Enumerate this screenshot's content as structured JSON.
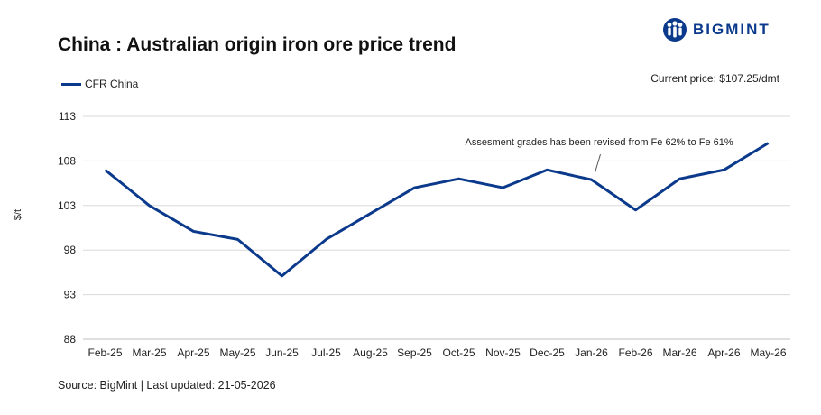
{
  "logo": {
    "text": "BIGMINT",
    "icon": "people-globe-icon",
    "color": "#0b3a8c"
  },
  "current_price": "Current price: $107.25/dmt",
  "footer": "Source: BigMint | Last updated: 21-05-2026",
  "colors": {
    "line": "#0b3a8c",
    "grid": "#d9d9d9",
    "axis": "#bfbfbf"
  },
  "chart_data": {
    "type": "line",
    "title": "China : Australian origin iron ore price trend",
    "ylabel": "$/t",
    "xlabel": "",
    "ylim": [
      88,
      113
    ],
    "yticks": [
      88,
      93,
      98,
      103,
      108,
      113
    ],
    "grid": true,
    "legend_position": "top-left",
    "categories": [
      "Feb-25",
      "Mar-25",
      "Apr-25",
      "May-25",
      "Jun-25",
      "Jul-25",
      "Aug-25",
      "Sep-25",
      "Oct-25",
      "Nov-25",
      "Dec-25",
      "Jan-26",
      "Feb-26",
      "Mar-26",
      "Apr-26",
      "May-26"
    ],
    "series": [
      {
        "name": "CFR China",
        "values": [
          107,
          103,
          100.1,
          99.2,
          95.1,
          99.2,
          102.1,
          105,
          106,
          105,
          107,
          105.9,
          102.5,
          106,
          107,
          110
        ]
      }
    ],
    "annotations": [
      {
        "text": "Assesment grades has been revised from Fe 62% to Fe 61%",
        "category": "Jan-26"
      }
    ]
  }
}
